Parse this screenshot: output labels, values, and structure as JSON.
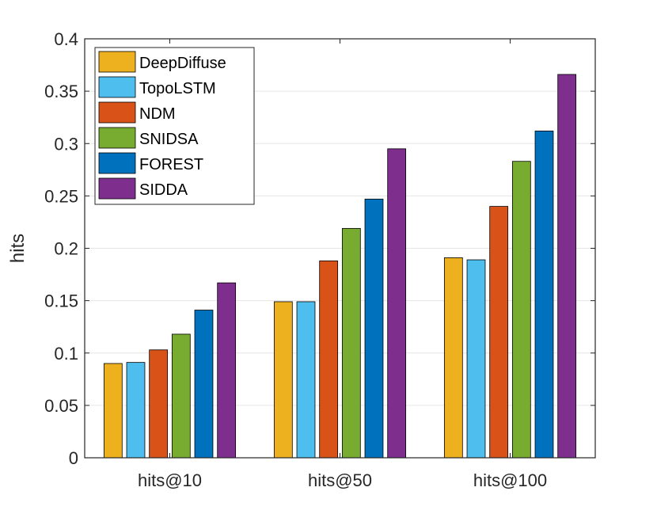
{
  "chart_data": {
    "type": "bar",
    "title": "",
    "xlabel": "",
    "ylabel": "hits",
    "categories": [
      "hits@10",
      "hits@50",
      "hits@100"
    ],
    "ylim": [
      0,
      0.4
    ],
    "yticks": [
      0,
      0.05,
      0.1,
      0.15,
      0.2,
      0.25,
      0.3,
      0.35,
      0.4
    ],
    "ytick_labels": [
      "0",
      "0.05",
      "0.1",
      "0.15",
      "0.2",
      "0.25",
      "0.3",
      "0.35",
      "0.4"
    ],
    "grid": true,
    "legend_position": "top-left",
    "series": [
      {
        "name": "DeepDiffuse",
        "color": "#EDB120",
        "values": [
          0.09,
          0.149,
          0.191
        ]
      },
      {
        "name": "TopoLSTM",
        "color": "#4DBEEE",
        "values": [
          0.091,
          0.149,
          0.189
        ]
      },
      {
        "name": "NDM",
        "color": "#D95319",
        "values": [
          0.103,
          0.188,
          0.24
        ]
      },
      {
        "name": "SNIDSA",
        "color": "#77AC30",
        "values": [
          0.118,
          0.219,
          0.283
        ]
      },
      {
        "name": "FOREST",
        "color": "#0072BD",
        "values": [
          0.141,
          0.247,
          0.312
        ]
      },
      {
        "name": "SIDDA",
        "color": "#7E2F8E",
        "values": [
          0.167,
          0.295,
          0.366
        ]
      }
    ]
  }
}
